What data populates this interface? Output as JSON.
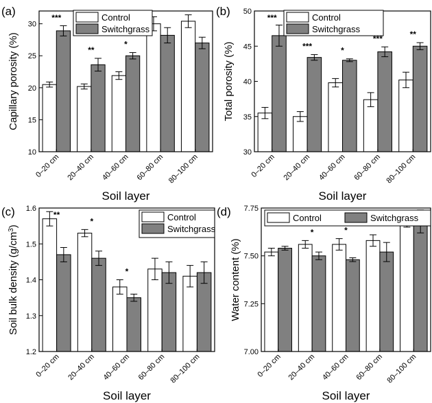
{
  "chart_data": [
    {
      "type": "bar",
      "panel_label": "(a)",
      "categories": [
        "0–20 cm",
        "20–40 cm",
        "40–60 cm",
        "60–80 cm",
        "80–100 cm"
      ],
      "xlabel": "Soil layer",
      "ylabel": "Capillary porosity (%)",
      "ylim": [
        10,
        32
      ],
      "yticks": [
        10,
        15,
        20,
        25,
        30
      ],
      "legend_position": "top-center",
      "series": [
        {
          "name": "Control",
          "values": [
            20.5,
            20.2,
            21.9,
            30.0,
            30.4
          ],
          "errors": [
            0.4,
            0.4,
            0.6,
            1.1,
            1.0
          ],
          "color": "#ffffff"
        },
        {
          "name": "Switchgrass",
          "values": [
            28.9,
            23.6,
            25.0,
            28.2,
            27.0
          ],
          "errors": [
            0.8,
            1.0,
            0.5,
            1.2,
            0.9
          ],
          "color": "#808080"
        }
      ],
      "annotations": [
        "***",
        "**",
        "*",
        "",
        ""
      ]
    },
    {
      "type": "bar",
      "panel_label": "(b)",
      "categories": [
        "0–20 cm",
        "20–40 cm",
        "40–60 cm",
        "60–80 cm",
        "80–100 cm"
      ],
      "xlabel": "Soil layer",
      "ylabel": "Total porosity (%)",
      "ylim": [
        30,
        50
      ],
      "yticks": [
        30,
        35,
        40,
        45,
        50
      ],
      "legend_position": "top-center",
      "series": [
        {
          "name": "Control",
          "values": [
            35.5,
            35.0,
            39.8,
            37.4,
            40.2
          ],
          "errors": [
            0.8,
            0.7,
            0.6,
            1.0,
            1.1
          ],
          "color": "#ffffff"
        },
        {
          "name": "Switchgrass",
          "values": [
            46.5,
            43.4,
            43.0,
            44.2,
            45.0
          ],
          "errors": [
            1.5,
            0.4,
            0.2,
            0.7,
            0.5
          ],
          "color": "#808080"
        }
      ],
      "annotations": [
        "***",
        "***",
        "*",
        "***",
        "**"
      ]
    },
    {
      "type": "bar",
      "panel_label": "(c)",
      "categories": [
        "0–20 cm",
        "20–40 cm",
        "40–60 cm",
        "60–80 cm",
        "80–100 cm"
      ],
      "xlabel": "Soil layer",
      "ylabel": "Soil bulk density (g/cm",
      "ylabel_sup": "3",
      "ylabel_end": ")",
      "ylim": [
        1.2,
        1.6
      ],
      "yticks": [
        "1.2",
        "1.3",
        "1.4",
        "1.5",
        "1.6"
      ],
      "legend_position": "top-right",
      "series": [
        {
          "name": "Control",
          "values": [
            1.57,
            1.53,
            1.38,
            1.43,
            1.41
          ],
          "errors": [
            0.02,
            0.01,
            0.02,
            0.03,
            0.03
          ],
          "color": "#ffffff"
        },
        {
          "name": "Switchgrass",
          "values": [
            1.47,
            1.46,
            1.35,
            1.42,
            1.42
          ],
          "errors": [
            0.02,
            0.02,
            0.01,
            0.03,
            0.03
          ],
          "color": "#808080"
        }
      ],
      "annotations": [
        "**",
        "*",
        "*",
        "",
        ""
      ]
    },
    {
      "type": "bar",
      "panel_label": "(d)",
      "categories": [
        "0–20 cm",
        "20–40 cm",
        "40–60 cm",
        "60–80 cm",
        "80–100 cm"
      ],
      "xlabel": "Soil layer",
      "ylabel": "Water content (%)",
      "ylim": [
        7.0,
        7.75
      ],
      "yticks": [
        "7.00",
        "7.25",
        "7.50",
        "7.75"
      ],
      "legend_position": "top",
      "series": [
        {
          "name": "Control",
          "values": [
            7.52,
            7.56,
            7.56,
            7.58,
            7.66
          ],
          "errors": [
            0.02,
            0.02,
            0.03,
            0.03,
            0.01
          ],
          "color": "#ffffff"
        },
        {
          "name": "Switchgrass",
          "values": [
            7.54,
            7.5,
            7.48,
            7.52,
            7.68
          ],
          "errors": [
            0.01,
            0.02,
            0.01,
            0.05,
            0.06
          ],
          "color": "#808080"
        }
      ],
      "annotations": [
        "",
        "*",
        "*",
        "",
        ""
      ]
    }
  ]
}
